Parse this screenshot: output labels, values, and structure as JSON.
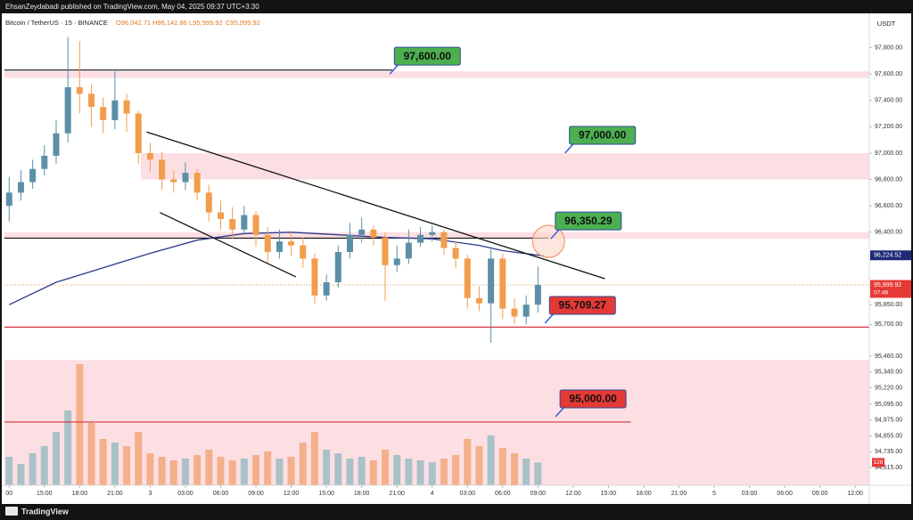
{
  "header": {
    "text": "EhsanZeydabadi published on TradingView.com, May 04, 2025 09:37 UTC+3:30"
  },
  "footer": {
    "brand": "TradingView"
  },
  "chart_data": {
    "type": "candlestick",
    "symbol": "Bitcoin / TetherUS · 15 · BINANCE",
    "ohlc_legend": [
      {
        "value": 96042.71,
        "label": "O96,042.71"
      },
      {
        "value": 96142.86,
        "label": "H96,142.86"
      },
      {
        "value": 95999.92,
        "label": "L95,999.92"
      },
      {
        "value": 95999.92,
        "label": "C95,999.92"
      }
    ],
    "currency": "USDT",
    "x": [
      -12,
      -11,
      -10,
      -9,
      -8,
      -7,
      -6,
      -5,
      -4,
      -3,
      -2,
      -1,
      0,
      1,
      2,
      3,
      4,
      5,
      6,
      7,
      8,
      9,
      10,
      11,
      12,
      13,
      14,
      15,
      16,
      17,
      18,
      19,
      20,
      21,
      22,
      23,
      24,
      25,
      26,
      27,
      28,
      29,
      30,
      31,
      32,
      33
    ],
    "open": [
      96600,
      96700,
      96780,
      96880,
      96980,
      97150,
      97500,
      97450,
      97350,
      97250,
      97400,
      97300,
      97000,
      96950,
      96800,
      96780,
      96850,
      96700,
      96550,
      96500,
      96420,
      96530,
      96380,
      96250,
      96330,
      96300,
      96200,
      95920,
      96020,
      96250,
      96380,
      96420,
      96360,
      96150,
      96200,
      96320,
      96380,
      96400,
      96280,
      96200,
      95900,
      95860,
      96200,
      95820,
      95760,
      95850
    ],
    "high": [
      96820,
      96870,
      96950,
      97060,
      97250,
      97880,
      97850,
      97520,
      97420,
      97620,
      97450,
      97320,
      97080,
      97010,
      96870,
      96930,
      96880,
      96760,
      96640,
      96590,
      96600,
      96560,
      96440,
      96420,
      96400,
      96360,
      96240,
      96080,
      96300,
      96470,
      96510,
      96450,
      96400,
      96300,
      96420,
      96440,
      96450,
      96420,
      96330,
      96230,
      95990,
      96270,
      96240,
      95900,
      95920,
      96140
    ],
    "low": [
      96480,
      96640,
      96730,
      96830,
      96920,
      97080,
      97300,
      97200,
      97150,
      97180,
      97160,
      96920,
      96860,
      96720,
      96700,
      96720,
      96640,
      96480,
      96420,
      96350,
      96380,
      96290,
      96170,
      96200,
      96220,
      96130,
      95860,
      95880,
      95980,
      96200,
      96320,
      96300,
      95880,
      96100,
      96160,
      96290,
      96330,
      96230,
      96130,
      95820,
      95800,
      95560,
      95740,
      95700,
      95700,
      95790
    ],
    "close": [
      96700,
      96780,
      96880,
      96980,
      97150,
      97500,
      97450,
      97350,
      97250,
      97400,
      97300,
      97000,
      96950,
      96800,
      96780,
      96850,
      96700,
      96550,
      96500,
      96420,
      96530,
      96380,
      96250,
      96330,
      96300,
      96200,
      95920,
      96020,
      96250,
      96380,
      96420,
      96360,
      96150,
      96200,
      96320,
      96380,
      96400,
      96280,
      96200,
      95900,
      95860,
      96200,
      95820,
      95760,
      95850,
      96000
    ],
    "volume": [
      160,
      120,
      180,
      220,
      300,
      420,
      680,
      350,
      260,
      240,
      220,
      300,
      180,
      160,
      140,
      150,
      170,
      200,
      160,
      140,
      150,
      170,
      190,
      150,
      160,
      240,
      300,
      200,
      180,
      150,
      160,
      140,
      200,
      170,
      150,
      140,
      130,
      150,
      170,
      260,
      220,
      280,
      210,
      180,
      150,
      128
    ],
    "vlim": [
      0,
      800
    ],
    "colors": {
      "up": "#5b8fa8",
      "down": "#f29d4b",
      "volume_up": "#a9c2c8",
      "volume_down": "#f4b08a",
      "ma": "#2b3a8c"
    },
    "ma": {
      "x": [
        -12,
        -8,
        -4,
        0,
        4,
        8,
        12,
        16,
        20,
        24,
        28,
        30,
        33.5
      ],
      "values": [
        95850,
        96020,
        96130,
        96240,
        96340,
        96390,
        96400,
        96380,
        96360,
        96350,
        96300,
        96260,
        96220
      ]
    },
    "xlim": [
      -12.4,
      61.2
    ],
    "xticks": [
      {
        "value": -12,
        "label": "00"
      },
      {
        "value": -9,
        "label": "15:00"
      },
      {
        "value": -6,
        "label": "18:00"
      },
      {
        "value": -3,
        "label": "21:00"
      },
      {
        "value": 0,
        "label": "3"
      },
      {
        "value": 3,
        "label": "03:00"
      },
      {
        "value": 6,
        "label": "06:00"
      },
      {
        "value": 9,
        "label": "09:00"
      },
      {
        "value": 12,
        "label": "12:00"
      },
      {
        "value": 15,
        "label": "15:00"
      },
      {
        "value": 18,
        "label": "18:00"
      },
      {
        "value": 21,
        "label": "21:00"
      },
      {
        "value": 24,
        "label": "4"
      },
      {
        "value": 27,
        "label": "03:00"
      },
      {
        "value": 30,
        "label": "06:00"
      },
      {
        "value": 33,
        "label": "09:00"
      },
      {
        "value": 36,
        "label": "12:00"
      },
      {
        "value": 39,
        "label": "15:00"
      },
      {
        "value": 42,
        "label": "18:00"
      },
      {
        "value": 45,
        "label": "21:00"
      },
      {
        "value": 48,
        "label": "5"
      },
      {
        "value": 51,
        "label": "03:00"
      },
      {
        "value": 54,
        "label": "06:00"
      },
      {
        "value": 57,
        "label": "09:00"
      },
      {
        "value": 60,
        "label": "12:00"
      }
    ],
    "ylim": [
      94480,
      98040
    ],
    "yticks": [
      {
        "value": 97800,
        "label": "97,800.00"
      },
      {
        "value": 97600,
        "label": "97,600.00"
      },
      {
        "value": 97400,
        "label": "97,400.00"
      },
      {
        "value": 97200,
        "label": "97,200.00"
      },
      {
        "value": 97000,
        "label": "97,000.00"
      },
      {
        "value": 96800,
        "label": "96,800.00"
      },
      {
        "value": 96600,
        "label": "96,600.00"
      },
      {
        "value": 96400,
        "label": "96,400.00"
      },
      {
        "value": 95850,
        "label": "95,850.00"
      },
      {
        "value": 95700,
        "label": "95,700.00"
      },
      {
        "value": 95460,
        "label": "95,460.00"
      },
      {
        "value": 95340,
        "label": "95,340.00"
      },
      {
        "value": 95220,
        "label": "95,220.00"
      },
      {
        "value": 95095,
        "label": "95,095.00"
      },
      {
        "value": 94975,
        "label": "94,975.00"
      },
      {
        "value": 94855,
        "label": "94,855.00"
      },
      {
        "value": 94735,
        "label": "94,735.00"
      },
      {
        "value": 94615,
        "label": "94,615.00"
      }
    ],
    "zones": [
      {
        "ylim": [
          97570,
          97620
        ],
        "x_from": -12.4
      },
      {
        "ylim": [
          96800,
          97000
        ],
        "x_from": -0.8
      },
      {
        "ylim": [
          96350,
          96400
        ],
        "x_from": -12.4
      },
      {
        "ylim": [
          94480,
          95430
        ],
        "x_from": -12.4
      }
    ],
    "lines": [
      {
        "value": 97630,
        "x": [
          -12.4,
          20.6
        ],
        "color": "#111111"
      },
      {
        "value": 96355,
        "x": [
          -12.4,
          33.9
        ],
        "color": "#111111"
      },
      {
        "value": 95680,
        "x": [
          -12.4,
          61.2
        ],
        "color": "#d9303f"
      },
      {
        "value": 94960,
        "x": [
          -12.4,
          40.9
        ],
        "color": "#d9303f"
      }
    ],
    "trendlines": [
      {
        "x": [
          -0.3,
          38.7
        ],
        "y": [
          97160,
          96047
        ]
      },
      {
        "x": [
          0.83,
          12.4
        ],
        "y": [
          96549,
          96061
        ]
      }
    ],
    "callouts": [
      {
        "value": 97600,
        "label": "97,600.00",
        "x": 20.4,
        "color": "#4caf50"
      },
      {
        "value": 97000,
        "label": "97,000.00",
        "x": 35.3,
        "color": "#4caf50"
      },
      {
        "value": 96350.29,
        "label": "96,350.29",
        "x": 34.1,
        "color": "#4caf50"
      },
      {
        "value": 95709.27,
        "label": "95,709.27",
        "x": 33.6,
        "color": "#e53935"
      },
      {
        "value": 95000,
        "label": "95,000.00",
        "x": 34.5,
        "color": "#e53935"
      }
    ],
    "highlight": {
      "x": 33.9,
      "y": 96330
    },
    "price_labels": [
      {
        "value": 96224.52,
        "label": "96,224.52",
        "color": "#1e2a78"
      },
      {
        "value": 95999.92,
        "label": "95,999.92",
        "color": "#e53935",
        "timer": "07:46"
      }
    ],
    "volume_label": {
      "value": 128,
      "label": "128",
      "color": "#e53935"
    }
  }
}
